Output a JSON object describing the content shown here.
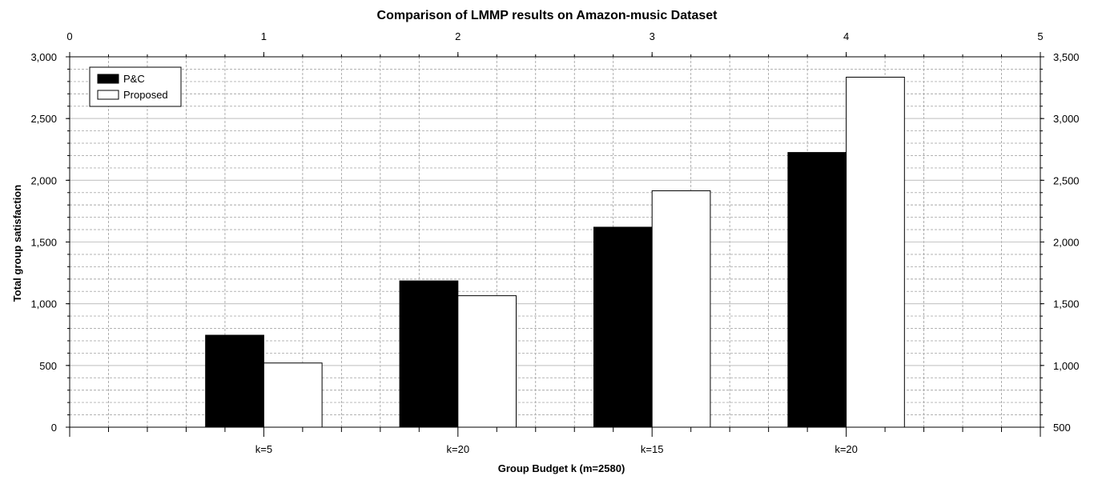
{
  "chart_data": {
    "type": "bar",
    "title": "Comparison of LMMP results on Amazon-music Dataset",
    "xlabel": "Group Budget k (m=2580)",
    "ylabel": "Total group satisfaction",
    "categories": [
      "k=5",
      "k=20",
      "k=15",
      "k=20"
    ],
    "series": [
      {
        "name": "P&C",
        "values": [
          745,
          1185,
          1620,
          2225
        ],
        "color": "#000000"
      },
      {
        "name": "Proposed",
        "values": [
          520,
          1065,
          1915,
          2835
        ],
        "color": "#ffffff"
      }
    ],
    "ylim": [
      0,
      3000
    ],
    "yticks": [
      "0",
      "500",
      "1,000",
      "1,500",
      "2,000",
      "2,500",
      "3,000"
    ],
    "xlim_top": [
      0,
      5
    ],
    "xticks_top": [
      "0",
      "1",
      "2",
      "3",
      "4",
      "5"
    ],
    "ylim_right": [
      500,
      3500
    ],
    "yticks_right": [
      "500",
      "1,000",
      "1,500",
      "2,000",
      "2,500",
      "3,000",
      "3,500"
    ],
    "grid": true,
    "legend_position": "top-left"
  }
}
